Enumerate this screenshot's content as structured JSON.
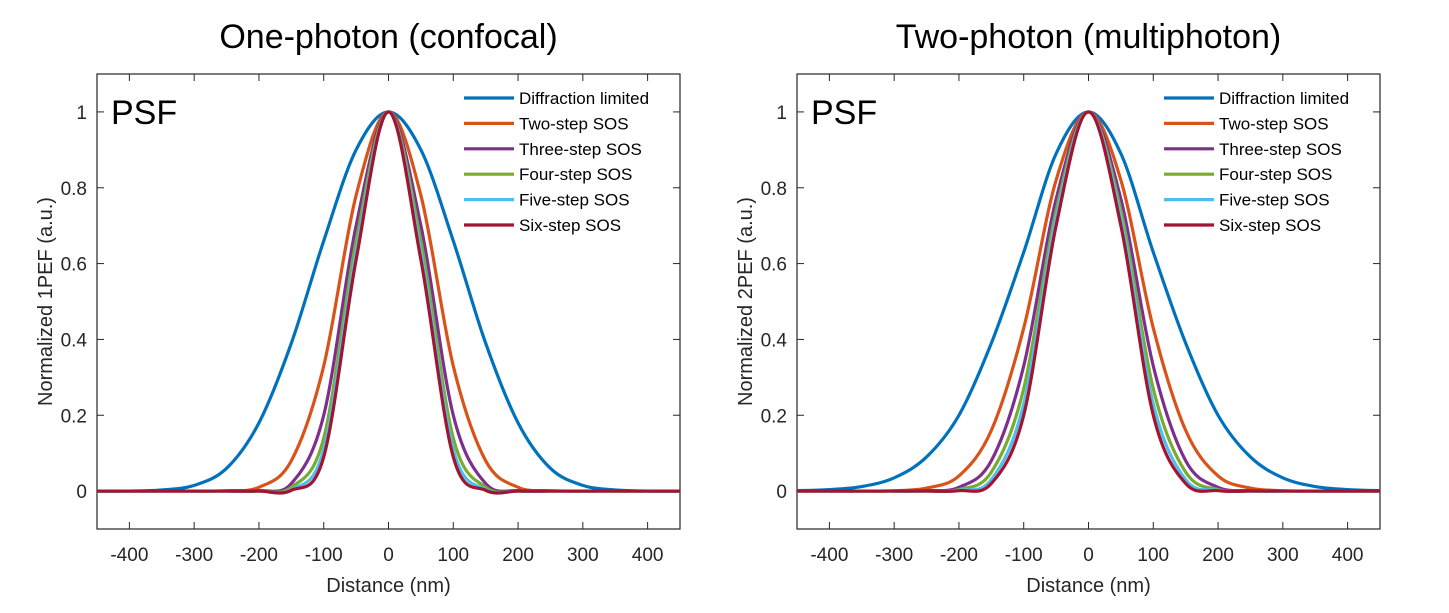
{
  "chart_data": [
    {
      "type": "line",
      "title": "One-photon (confocal)",
      "xlabel": "Distance (nm)",
      "ylabel": "Normalized 1PEF (a.u.)",
      "corner_label": "PSF",
      "xlim": [
        -450,
        450
      ],
      "ylim": [
        -0.1,
        1.1
      ],
      "xticks": [
        -400,
        -300,
        -200,
        -100,
        0,
        100,
        200,
        300,
        400
      ],
      "xtick_labels": [
        "-400",
        "-300",
        "-200",
        "-100",
        "0",
        "100",
        "200",
        "300",
        "400"
      ],
      "yticks": [
        0,
        0.2,
        0.4,
        0.6,
        0.8,
        1
      ],
      "ytick_labels": [
        "0",
        "0.2",
        "0.4",
        "0.6",
        "0.8",
        "1"
      ],
      "grid": false,
      "legend": "top-right",
      "x": [
        -450,
        -400,
        -350,
        -300,
        -250,
        -200,
        -150,
        -100,
        -50,
        0,
        50,
        100,
        150,
        200,
        250,
        300,
        350,
        400,
        450
      ],
      "series": [
        {
          "name": "Diffraction limited",
          "color": "#0072BD",
          "values": [
            0.0,
            0.0,
            0.003,
            0.015,
            0.06,
            0.18,
            0.39,
            0.66,
            0.9,
            1.0,
            0.9,
            0.66,
            0.39,
            0.18,
            0.06,
            0.015,
            0.003,
            0.0,
            0.0
          ]
        },
        {
          "name": "Two-step SOS",
          "color": "#D95319",
          "values": [
            0.0,
            0.0,
            0.0,
            0.0,
            0.001,
            0.01,
            0.08,
            0.33,
            0.78,
            1.0,
            0.78,
            0.33,
            0.08,
            0.01,
            0.001,
            0.0,
            0.0,
            0.0,
            0.0
          ]
        },
        {
          "name": "Three-step SOS",
          "color": "#7E2F8E",
          "values": [
            0.0,
            0.0,
            0.0,
            0.0,
            0.0,
            0.001,
            0.02,
            0.2,
            0.7,
            1.0,
            0.7,
            0.2,
            0.02,
            0.001,
            0.0,
            0.0,
            0.0,
            0.0,
            0.0
          ]
        },
        {
          "name": "Four-step SOS",
          "color": "#77AC30",
          "values": [
            0.0,
            0.0,
            0.0,
            0.0,
            0.0,
            0.0,
            0.01,
            0.14,
            0.66,
            1.0,
            0.66,
            0.14,
            0.01,
            0.0,
            0.0,
            0.0,
            0.0,
            0.0,
            0.0
          ]
        },
        {
          "name": "Five-step SOS",
          "color": "#4DBEEE",
          "values": [
            0.0,
            0.0,
            0.0,
            0.0,
            0.0,
            0.0,
            0.004,
            0.11,
            0.63,
            1.0,
            0.63,
            0.11,
            0.004,
            0.0,
            0.0,
            0.0,
            0.0,
            0.0,
            0.0
          ]
        },
        {
          "name": "Six-step SOS",
          "color": "#A2142F",
          "values": [
            0.0,
            0.0,
            0.0,
            0.0,
            0.0,
            0.0,
            0.002,
            0.09,
            0.61,
            1.0,
            0.61,
            0.09,
            0.002,
            0.0,
            0.0,
            0.0,
            0.0,
            0.0,
            0.0
          ]
        }
      ]
    },
    {
      "type": "line",
      "title": "Two-photon (multiphoton)",
      "xlabel": "Distance (nm)",
      "ylabel": "Normalized 2PEF (a.u.)",
      "corner_label": "PSF",
      "xlim": [
        -450,
        450
      ],
      "ylim": [
        -0.1,
        1.1
      ],
      "xticks": [
        -400,
        -300,
        -200,
        -100,
        0,
        100,
        200,
        300,
        400
      ],
      "xtick_labels": [
        "-400",
        "-300",
        "-200",
        "-100",
        "0",
        "100",
        "200",
        "300",
        "400"
      ],
      "yticks": [
        0,
        0.2,
        0.4,
        0.6,
        0.8,
        1
      ],
      "ytick_labels": [
        "0",
        "0.2",
        "0.4",
        "0.6",
        "0.8",
        "1"
      ],
      "grid": false,
      "legend": "top-right",
      "x": [
        -450,
        -400,
        -350,
        -300,
        -250,
        -200,
        -150,
        -100,
        -50,
        0,
        50,
        100,
        150,
        200,
        250,
        300,
        350,
        400,
        450
      ],
      "series": [
        {
          "name": "Diffraction limited",
          "color": "#0072BD",
          "values": [
            0.001,
            0.004,
            0.012,
            0.035,
            0.09,
            0.2,
            0.39,
            0.63,
            0.89,
            1.0,
            0.89,
            0.63,
            0.39,
            0.2,
            0.09,
            0.035,
            0.012,
            0.004,
            0.001
          ]
        },
        {
          "name": "Two-step SOS",
          "color": "#D95319",
          "values": [
            0.0,
            0.0,
            0.0,
            0.001,
            0.008,
            0.04,
            0.16,
            0.43,
            0.82,
            1.0,
            0.82,
            0.43,
            0.16,
            0.04,
            0.008,
            0.001,
            0.0,
            0.0,
            0.0
          ]
        },
        {
          "name": "Three-step SOS",
          "color": "#7E2F8E",
          "values": [
            0.0,
            0.0,
            0.0,
            0.0,
            0.001,
            0.01,
            0.08,
            0.33,
            0.77,
            1.0,
            0.77,
            0.33,
            0.08,
            0.01,
            0.001,
            0.0,
            0.0,
            0.0,
            0.0
          ]
        },
        {
          "name": "Four-step SOS",
          "color": "#77AC30",
          "values": [
            0.0,
            0.0,
            0.0,
            0.0,
            0.0,
            0.004,
            0.05,
            0.27,
            0.74,
            1.0,
            0.74,
            0.27,
            0.05,
            0.004,
            0.0,
            0.0,
            0.0,
            0.0,
            0.0
          ]
        },
        {
          "name": "Five-step SOS",
          "color": "#4DBEEE",
          "values": [
            0.0,
            0.0,
            0.0,
            0.0,
            0.0,
            0.002,
            0.03,
            0.23,
            0.72,
            1.0,
            0.72,
            0.23,
            0.03,
            0.002,
            0.0,
            0.0,
            0.0,
            0.0,
            0.0
          ]
        },
        {
          "name": "Six-step SOS",
          "color": "#A2142F",
          "values": [
            0.0,
            0.0,
            0.0,
            0.0,
            0.0,
            0.001,
            0.02,
            0.2,
            0.7,
            1.0,
            0.7,
            0.2,
            0.02,
            0.001,
            0.0,
            0.0,
            0.0,
            0.0,
            0.0
          ]
        }
      ]
    }
  ]
}
